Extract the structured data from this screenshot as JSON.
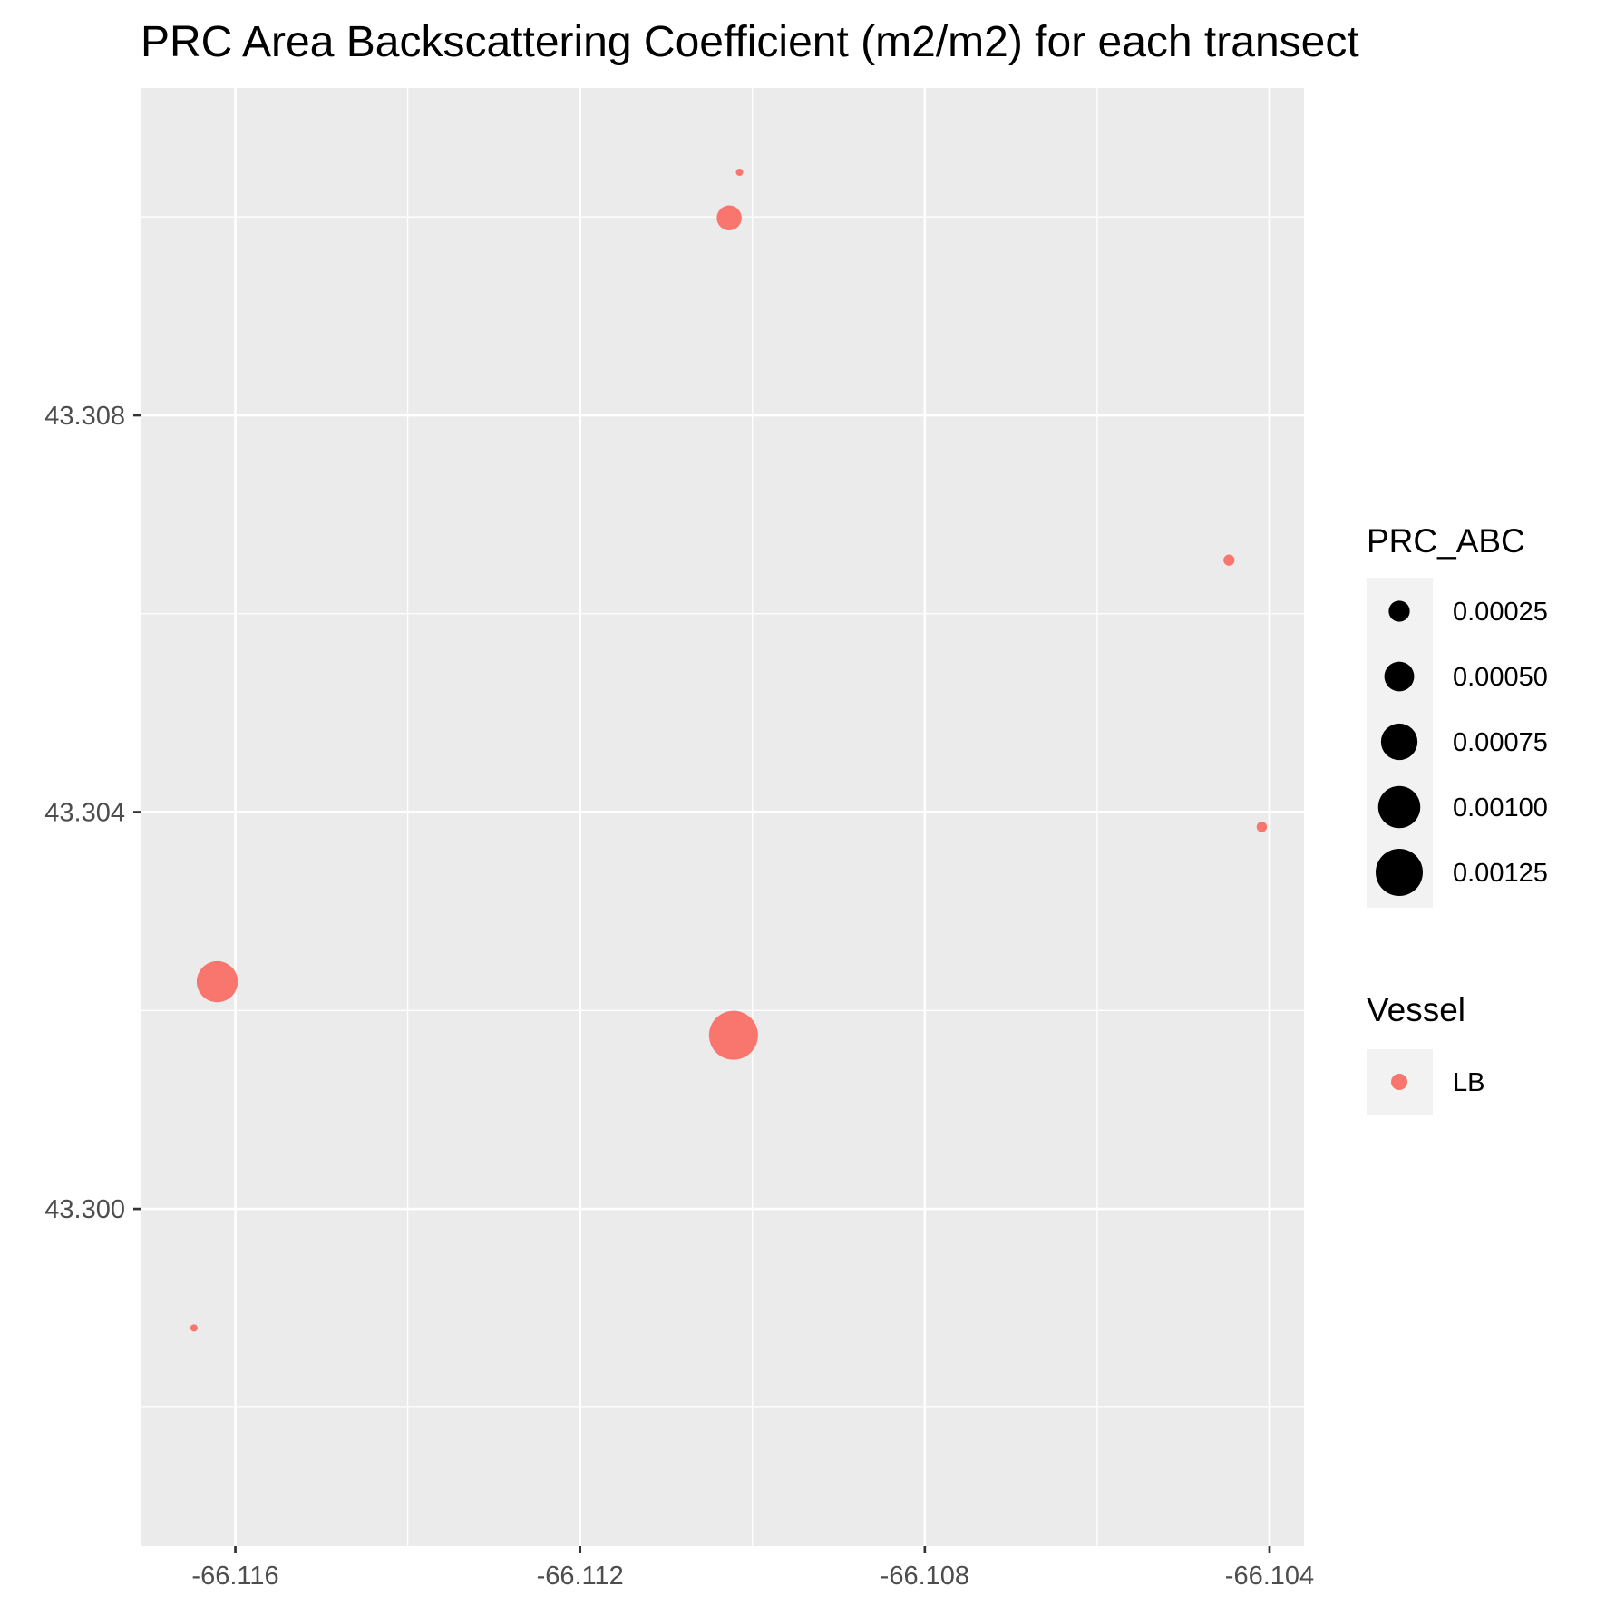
{
  "chart_data": {
    "type": "scatter",
    "title": "PRC Area Backscattering Coefficient (m2/m2) for each transect",
    "xlabel": "",
    "ylabel": "",
    "xlim": [
      -66.1171,
      -66.1036
    ],
    "ylim": [
      43.2966,
      43.3113
    ],
    "x_ticks": [
      -66.116,
      -66.112,
      -66.108,
      -66.104
    ],
    "x_tick_labels": [
      "-66.116",
      "-66.112",
      "-66.108",
      "-66.104"
    ],
    "y_ticks": [
      43.3,
      43.304,
      43.308
    ],
    "y_tick_labels": [
      "43.300",
      "43.304",
      "43.308"
    ],
    "grid": true,
    "series": [
      {
        "name": "LB",
        "color": "#F8766D",
        "points": [
          {
            "x": -66.11015,
            "y": 43.31045,
            "size": 3e-05
          },
          {
            "x": -66.11027,
            "y": 43.30999,
            "size": 0.00035
          },
          {
            "x": -66.10447,
            "y": 43.30654,
            "size": 7e-05
          },
          {
            "x": -66.10409,
            "y": 43.30385,
            "size": 6e-05
          },
          {
            "x": -66.11621,
            "y": 43.30229,
            "size": 0.00095
          },
          {
            "x": -66.11022,
            "y": 43.30175,
            "size": 0.00135
          },
          {
            "x": -66.11648,
            "y": 43.2988,
            "size": 3e-05
          }
        ]
      }
    ],
    "legend": {
      "placement": "right",
      "size": {
        "title": "PRC_ABC",
        "entries": [
          {
            "label": "0.00025",
            "value": 0.00025
          },
          {
            "label": "0.00050",
            "value": 0.0005
          },
          {
            "label": "0.00075",
            "value": 0.00075
          },
          {
            "label": "0.00100",
            "value": 0.001
          },
          {
            "label": "0.00125",
            "value": 0.00125
          }
        ]
      },
      "color": {
        "title": "Vessel",
        "entries": [
          {
            "label": "LB",
            "color": "#F8766D"
          }
        ]
      }
    }
  }
}
